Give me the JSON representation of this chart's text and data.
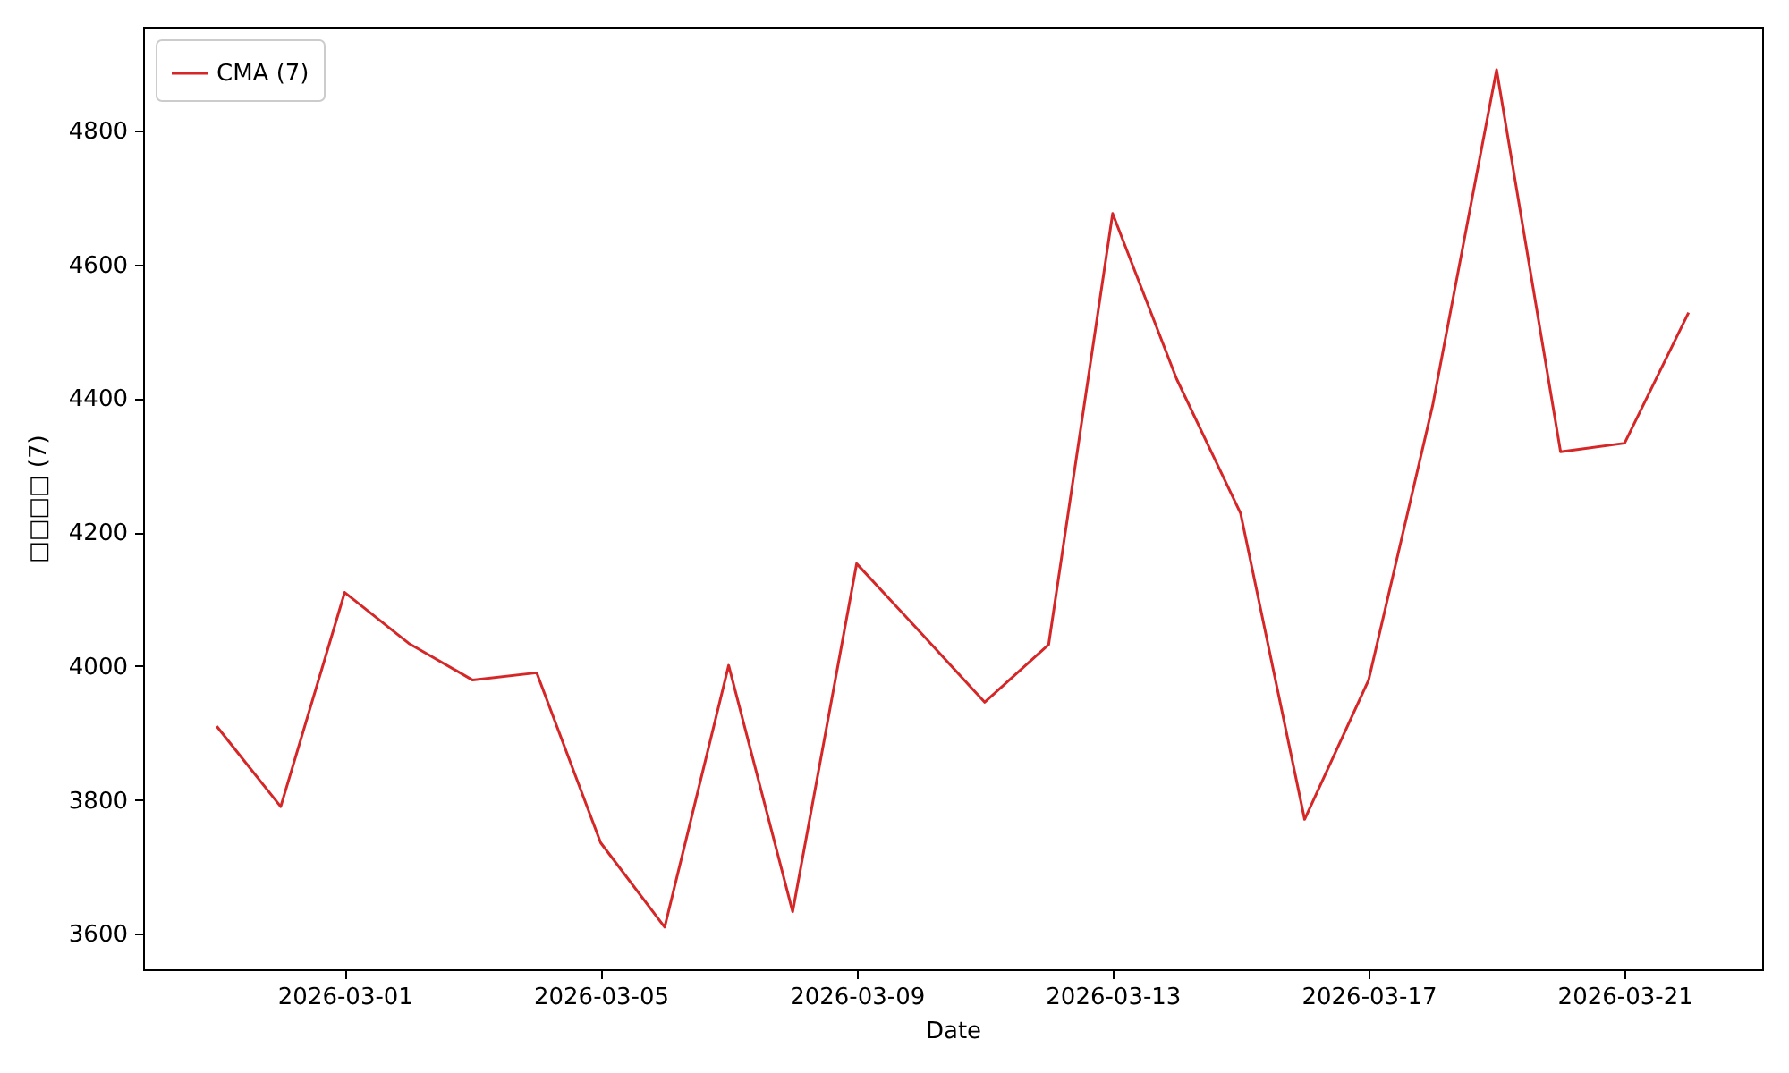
{
  "chart_data": {
    "type": "line",
    "xlabel": "Date",
    "ylabel": "□□□□ (7)",
    "x": [
      "2026-02-27",
      "2026-02-28",
      "2026-03-01",
      "2026-03-02",
      "2026-03-03",
      "2026-03-04",
      "2026-03-05",
      "2026-03-06",
      "2026-03-07",
      "2026-03-08",
      "2026-03-09",
      "2026-03-10",
      "2026-03-11",
      "2026-03-12",
      "2026-03-13",
      "2026-03-14",
      "2026-03-15",
      "2026-03-16",
      "2026-03-17",
      "2026-03-18",
      "2026-03-19",
      "2026-03-20",
      "2026-03-21",
      "2026-03-22"
    ],
    "series": [
      {
        "name": "CMA (7)",
        "color": "#d62728",
        "values": [
          3910,
          3790,
          4110,
          4034,
          3979,
          3990,
          3736,
          3610,
          4001,
          3633,
          4153,
          4050,
          3946,
          4032,
          4676,
          4429,
          4228,
          3771,
          3979,
          4389,
          4891,
          4320,
          4333,
          4528
        ]
      }
    ],
    "xlim": [
      "2026-02-25T20:24",
      "2026-03-23T03:36"
    ],
    "ylim": [
      3547,
      4955
    ],
    "xticks": [
      "2026-03-01",
      "2026-03-05",
      "2026-03-09",
      "2026-03-13",
      "2026-03-17",
      "2026-03-21"
    ],
    "yticks": [
      3600,
      3800,
      4000,
      4200,
      4400,
      4600,
      4800
    ],
    "legend": "top left",
    "grid": false
  }
}
